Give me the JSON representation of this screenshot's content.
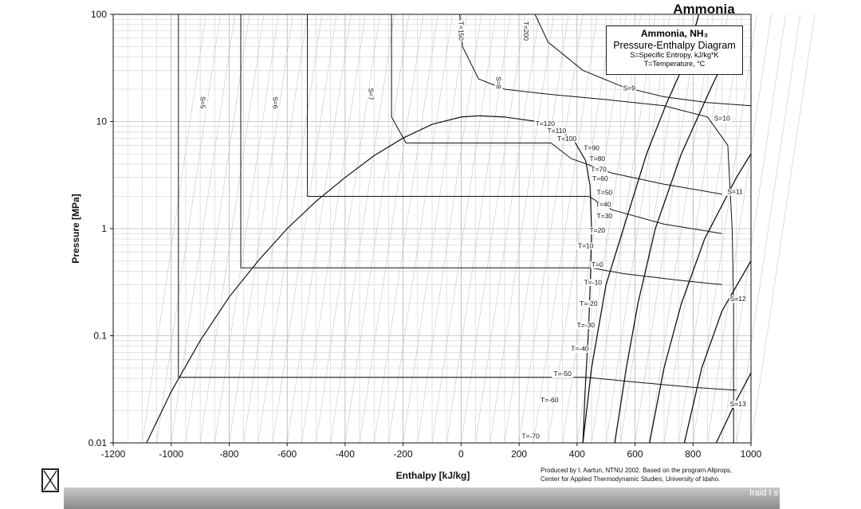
{
  "title": "Ammonia",
  "legend": {
    "line1": "Ammonia, NH₃",
    "line2": "Pressure-Enthalpy Diagram",
    "line3": "S=Specific Entropy, kJ/kg*K",
    "line4": "T=Temperature, °C"
  },
  "credit": {
    "line1": "Produced by I. Aartun, NTNU 2002. Based on the program Allprops,",
    "line2": "Center for Applied Thermodynamic Studies, University of Idaho."
  },
  "dock": {
    "label": "lraid I s"
  },
  "chart_data": {
    "type": "line",
    "xlabel": "Enthalpy [kJ/kg]",
    "ylabel": "Pressure [MPa]",
    "xlim": [
      -1200,
      1000
    ],
    "ylim": [
      0.01,
      100
    ],
    "yscale": "log",
    "grid": true,
    "x_ticks": [
      -1200,
      -1000,
      -800,
      -600,
      -400,
      -200,
      0,
      200,
      400,
      600,
      800,
      1000
    ],
    "x_tick_labels": [
      "-1200",
      "-1000",
      "-800",
      "-600",
      "-400",
      "-200",
      "0",
      "200",
      "400",
      "600",
      "800",
      "1000"
    ],
    "y_ticks": [
      0.01,
      0.1,
      1,
      10,
      100
    ],
    "y_tick_labels": [
      "0.01",
      "0.1",
      "1",
      "10",
      "100"
    ],
    "saturation_dome": {
      "liquid": [
        [
          -1085,
          0.01
        ],
        [
          -1000,
          0.03
        ],
        [
          -900,
          0.09
        ],
        [
          -800,
          0.23
        ],
        [
          -700,
          0.5
        ],
        [
          -600,
          1.0
        ],
        [
          -500,
          1.8
        ],
        [
          -400,
          3.0
        ],
        [
          -300,
          4.8
        ],
        [
          -200,
          7.0
        ],
        [
          -100,
          9.4
        ],
        [
          0,
          11.0
        ],
        [
          60,
          11.3
        ]
      ],
      "vapor": [
        [
          60,
          11.3
        ],
        [
          150,
          11.0
        ],
        [
          250,
          10.1
        ],
        [
          330,
          8.6
        ],
        [
          390,
          6.6
        ],
        [
          430,
          4.3
        ],
        [
          445,
          2.5
        ],
        [
          450,
          1.0
        ],
        [
          447,
          0.4
        ],
        [
          440,
          0.12
        ],
        [
          430,
          0.04
        ],
        [
          420,
          0.01
        ]
      ]
    },
    "isotherms": [
      {
        "name": "T=200",
        "points": [
          [
            255,
            100
          ],
          [
            300,
            55
          ],
          [
            420,
            30
          ],
          [
            560,
            21
          ],
          [
            700,
            17
          ],
          [
            850,
            15
          ],
          [
            1000,
            14
          ]
        ]
      },
      {
        "name": "T=150",
        "points": [
          [
            -5,
            100
          ],
          [
            5,
            50
          ],
          [
            60,
            25
          ],
          [
            150,
            20
          ],
          [
            300,
            18
          ],
          [
            500,
            16
          ],
          [
            700,
            14
          ],
          [
            850,
            11
          ],
          [
            920,
            6
          ],
          [
            935,
            1
          ],
          [
            940,
            0.2
          ],
          [
            940,
            0.01
          ]
        ]
      },
      {
        "name": "T=120",
        "points": [
          [
            -240,
            100
          ],
          [
            -240,
            11
          ],
          [
            -190,
            6.3
          ],
          [
            310,
            6.3
          ],
          [
            380,
            4.5
          ],
          [
            520,
            3.3
          ],
          [
            700,
            2.6
          ],
          [
            900,
            2.1
          ]
        ]
      },
      {
        "name": "T=50",
        "points": [
          [
            -530,
            100
          ],
          [
            -530,
            2.0
          ],
          [
            -500,
            2.0
          ],
          [
            440,
            2.0
          ],
          [
            520,
            1.5
          ],
          [
            700,
            1.1
          ],
          [
            900,
            0.9
          ]
        ]
      },
      {
        "name": "T=0",
        "points": [
          [
            -760,
            100
          ],
          [
            -760,
            0.43
          ],
          [
            -740,
            0.43
          ],
          [
            450,
            0.43
          ],
          [
            560,
            0.38
          ],
          [
            750,
            0.33
          ],
          [
            900,
            0.3
          ]
        ]
      },
      {
        "name": "T=-50",
        "points": [
          [
            -975,
            100
          ],
          [
            -975,
            0.041
          ],
          [
            -955,
            0.041
          ],
          [
            430,
            0.041
          ],
          [
            600,
            0.037
          ],
          [
            800,
            0.033
          ],
          [
            950,
            0.031
          ]
        ]
      }
    ],
    "isentropes": [
      {
        "name": "S=9",
        "points": [
          [
            420,
            0.01
          ],
          [
            450,
            0.05
          ],
          [
            500,
            0.3
          ],
          [
            560,
            1.0
          ],
          [
            640,
            5.0
          ],
          [
            710,
            15
          ],
          [
            780,
            40
          ],
          [
            820,
            100
          ]
        ]
      },
      {
        "name": "S=10",
        "points": [
          [
            530,
            0.01
          ],
          [
            570,
            0.05
          ],
          [
            610,
            0.2
          ],
          [
            670,
            1.0
          ],
          [
            760,
            5.0
          ],
          [
            860,
            20
          ],
          [
            930,
            50
          ]
        ]
      },
      {
        "name": "S=11",
        "points": [
          [
            650,
            0.01
          ],
          [
            700,
            0.05
          ],
          [
            760,
            0.2
          ],
          [
            840,
            0.8
          ],
          [
            950,
            3.0
          ],
          [
            1000,
            5.0
          ]
        ]
      },
      {
        "name": "S=12",
        "points": [
          [
            770,
            0.01
          ],
          [
            830,
            0.05
          ],
          [
            900,
            0.17
          ],
          [
            1000,
            0.5
          ]
        ]
      },
      {
        "name": "S=13",
        "points": [
          [
            880,
            0.01
          ],
          [
            950,
            0.025
          ],
          [
            1000,
            0.045
          ]
        ]
      }
    ],
    "labels": [
      {
        "text": "S=5",
        "x": -890,
        "y": 15,
        "rotate": 90
      },
      {
        "text": "S=6",
        "x": -640,
        "y": 15,
        "rotate": 90
      },
      {
        "text": "S=7",
        "x": -310,
        "y": 18,
        "rotate": 90
      },
      {
        "text": "S=8",
        "x": 130,
        "y": 23,
        "rotate": 90
      },
      {
        "text": "T=150",
        "x": 0,
        "y": 70,
        "rotate": 90
      },
      {
        "text": "T=200",
        "x": 225,
        "y": 70,
        "rotate": 90
      },
      {
        "text": "S=9",
        "x": 580,
        "y": 19.5
      },
      {
        "text": "S=10",
        "x": 900,
        "y": 10.2
      },
      {
        "text": "S=11",
        "x": 945,
        "y": 2.1
      },
      {
        "text": "S=12",
        "x": 955,
        "y": 0.21
      },
      {
        "text": "S=13",
        "x": 955,
        "y": 0.022
      },
      {
        "text": "T=120",
        "x": 290,
        "y": 9.1
      },
      {
        "text": "T=110",
        "x": 330,
        "y": 7.8
      },
      {
        "text": "T=100",
        "x": 365,
        "y": 6.6
      },
      {
        "text": "T=90",
        "x": 450,
        "y": 5.4
      },
      {
        "text": "T=80",
        "x": 470,
        "y": 4.3
      },
      {
        "text": "T=70",
        "x": 475,
        "y": 3.4
      },
      {
        "text": "T=60",
        "x": 480,
        "y": 2.8
      },
      {
        "text": "T=50",
        "x": 495,
        "y": 2.07
      },
      {
        "text": "T=40",
        "x": 490,
        "y": 1.6
      },
      {
        "text": "T=30",
        "x": 495,
        "y": 1.25
      },
      {
        "text": "T=20",
        "x": 470,
        "y": 0.92
      },
      {
        "text": "T=10",
        "x": 430,
        "y": 0.66
      },
      {
        "text": "T=0",
        "x": 470,
        "y": 0.44
      },
      {
        "text": "T=-10",
        "x": 455,
        "y": 0.3
      },
      {
        "text": "T=-20",
        "x": 440,
        "y": 0.19
      },
      {
        "text": "T=-30",
        "x": 430,
        "y": 0.12
      },
      {
        "text": "T=-40",
        "x": 410,
        "y": 0.072
      },
      {
        "text": "T=-50",
        "x": 350,
        "y": 0.042
      },
      {
        "text": "T=-60",
        "x": 305,
        "y": 0.024
      },
      {
        "text": "T=-70",
        "x": 240,
        "y": 0.011
      }
    ]
  }
}
